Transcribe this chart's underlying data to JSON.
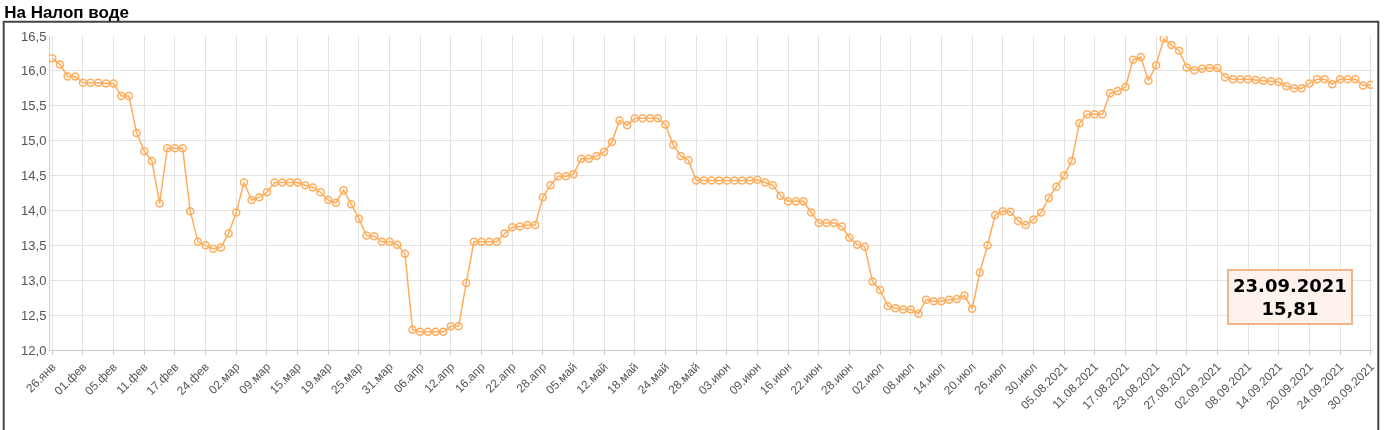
{
  "chart_data": {
    "type": "line",
    "title": "На Налоп воде",
    "categories": [
      "26.янв",
      null,
      null,
      null,
      "01.фев",
      null,
      null,
      null,
      "05.фев",
      null,
      null,
      null,
      "11.фев",
      null,
      null,
      null,
      "17.фев",
      null,
      null,
      null,
      "24.фев",
      null,
      null,
      null,
      "02.мар",
      null,
      null,
      null,
      "09.мар",
      null,
      null,
      null,
      "15.мар",
      null,
      null,
      null,
      "19.мар",
      null,
      null,
      null,
      "25.мар",
      null,
      null,
      null,
      "31.мар",
      null,
      null,
      null,
      "06.апр",
      null,
      null,
      null,
      "12.апр",
      null,
      null,
      null,
      "16.апр",
      null,
      null,
      null,
      "22.апр",
      null,
      null,
      null,
      "28.апр",
      null,
      null,
      null,
      "05.май",
      null,
      null,
      null,
      "12.май",
      null,
      null,
      null,
      "18.май",
      null,
      null,
      null,
      "24.май",
      null,
      null,
      null,
      "28.май",
      null,
      null,
      null,
      "03.июн",
      null,
      null,
      null,
      "09.июн",
      null,
      null,
      null,
      "16.июн",
      null,
      null,
      null,
      "22.июн",
      null,
      null,
      null,
      "28.июн",
      null,
      null,
      null,
      "02.июл",
      null,
      null,
      null,
      "08.июл",
      null,
      null,
      null,
      "14.июл",
      null,
      null,
      null,
      "20.июл",
      null,
      null,
      null,
      "26.июл",
      null,
      null,
      null,
      "30.июл",
      null,
      null,
      null,
      "05.08.2021",
      null,
      null,
      null,
      "11.08.2021",
      null,
      null,
      null,
      "17.08.2021",
      null,
      null,
      null,
      "23.08.2021",
      null,
      null,
      null,
      "27.08.2021",
      null,
      null,
      null,
      "02.09.2021",
      null,
      null,
      null,
      "08.09.2021",
      null,
      null,
      null,
      "14.09.2021",
      null,
      null,
      null,
      "20.09.2021",
      null,
      null,
      null,
      "24.09.2021",
      null,
      null,
      null,
      "30.09.2021"
    ],
    "series": [
      {
        "color": "#ffad5c",
        "values": [
          16.18,
          16.09,
          15.92,
          15.92,
          15.83,
          15.83,
          15.83,
          15.82,
          15.82,
          15.64,
          15.64,
          15.11,
          14.85,
          14.71,
          14.1,
          14.89,
          14.89,
          14.89,
          13.99,
          13.55,
          13.5,
          13.45,
          13.47,
          13.67,
          13.97,
          14.4,
          14.15,
          14.19,
          14.26,
          14.4,
          14.4,
          14.4,
          14.4,
          14.36,
          14.33,
          14.26,
          14.15,
          14.11,
          14.29,
          14.09,
          13.88,
          13.64,
          13.63,
          13.55,
          13.55,
          13.51,
          13.38,
          12.29,
          12.26,
          12.26,
          12.26,
          12.26,
          12.34,
          12.34,
          12.96,
          13.55,
          13.55,
          13.55,
          13.55,
          13.67,
          13.76,
          13.77,
          13.79,
          13.79,
          14.19,
          14.36,
          14.49,
          14.49,
          14.52,
          14.74,
          14.74,
          14.78,
          14.84,
          14.98,
          15.29,
          15.22,
          15.32,
          15.32,
          15.32,
          15.32,
          15.23,
          14.94,
          14.78,
          14.72,
          14.43,
          14.43,
          14.43,
          14.43,
          14.43,
          14.43,
          14.43,
          14.43,
          14.44,
          14.4,
          14.36,
          14.21,
          14.13,
          14.13,
          14.13,
          13.97,
          13.82,
          13.82,
          13.82,
          13.77,
          13.61,
          13.51,
          13.48,
          12.98,
          12.86,
          12.63,
          12.6,
          12.58,
          12.58,
          12.52,
          12.72,
          12.7,
          12.7,
          12.72,
          12.73,
          12.78,
          12.59,
          13.11,
          13.5,
          13.93,
          13.99,
          13.98,
          13.85,
          13.79,
          13.87,
          13.97,
          14.18,
          14.34,
          14.5,
          14.71,
          15.25,
          15.38,
          15.38,
          15.38,
          15.68,
          15.71,
          15.77,
          16.16,
          16.2,
          15.86,
          16.08,
          16.46,
          16.37,
          16.29,
          16.05,
          16.01,
          16.03,
          16.04,
          16.04,
          15.91,
          15.88,
          15.88,
          15.88,
          15.87,
          15.86,
          15.85,
          15.84,
          15.78,
          15.75,
          15.75,
          15.82,
          15.88,
          15.88,
          15.81,
          15.88,
          15.88,
          15.88,
          15.79,
          15.8
        ]
      }
    ],
    "ylim": [
      12.0,
      16.5
    ],
    "yticks": [
      {
        "value": 12.0,
        "label": "12,0"
      },
      {
        "value": 12.5,
        "label": "12,5"
      },
      {
        "value": 13.0,
        "label": "13,0"
      },
      {
        "value": 13.5,
        "label": "13,5"
      },
      {
        "value": 14.0,
        "label": "14,0"
      },
      {
        "value": 14.5,
        "label": "14,5"
      },
      {
        "value": 15.0,
        "label": "15,0"
      },
      {
        "value": 15.5,
        "label": "15,5"
      },
      {
        "value": 16.0,
        "label": "16,0"
      },
      {
        "value": 16.5,
        "label": "16,5"
      }
    ],
    "annotations": [
      "23.09.2021\n15,81"
    ],
    "grid": true,
    "marker": "circle",
    "line_style": "solid"
  }
}
